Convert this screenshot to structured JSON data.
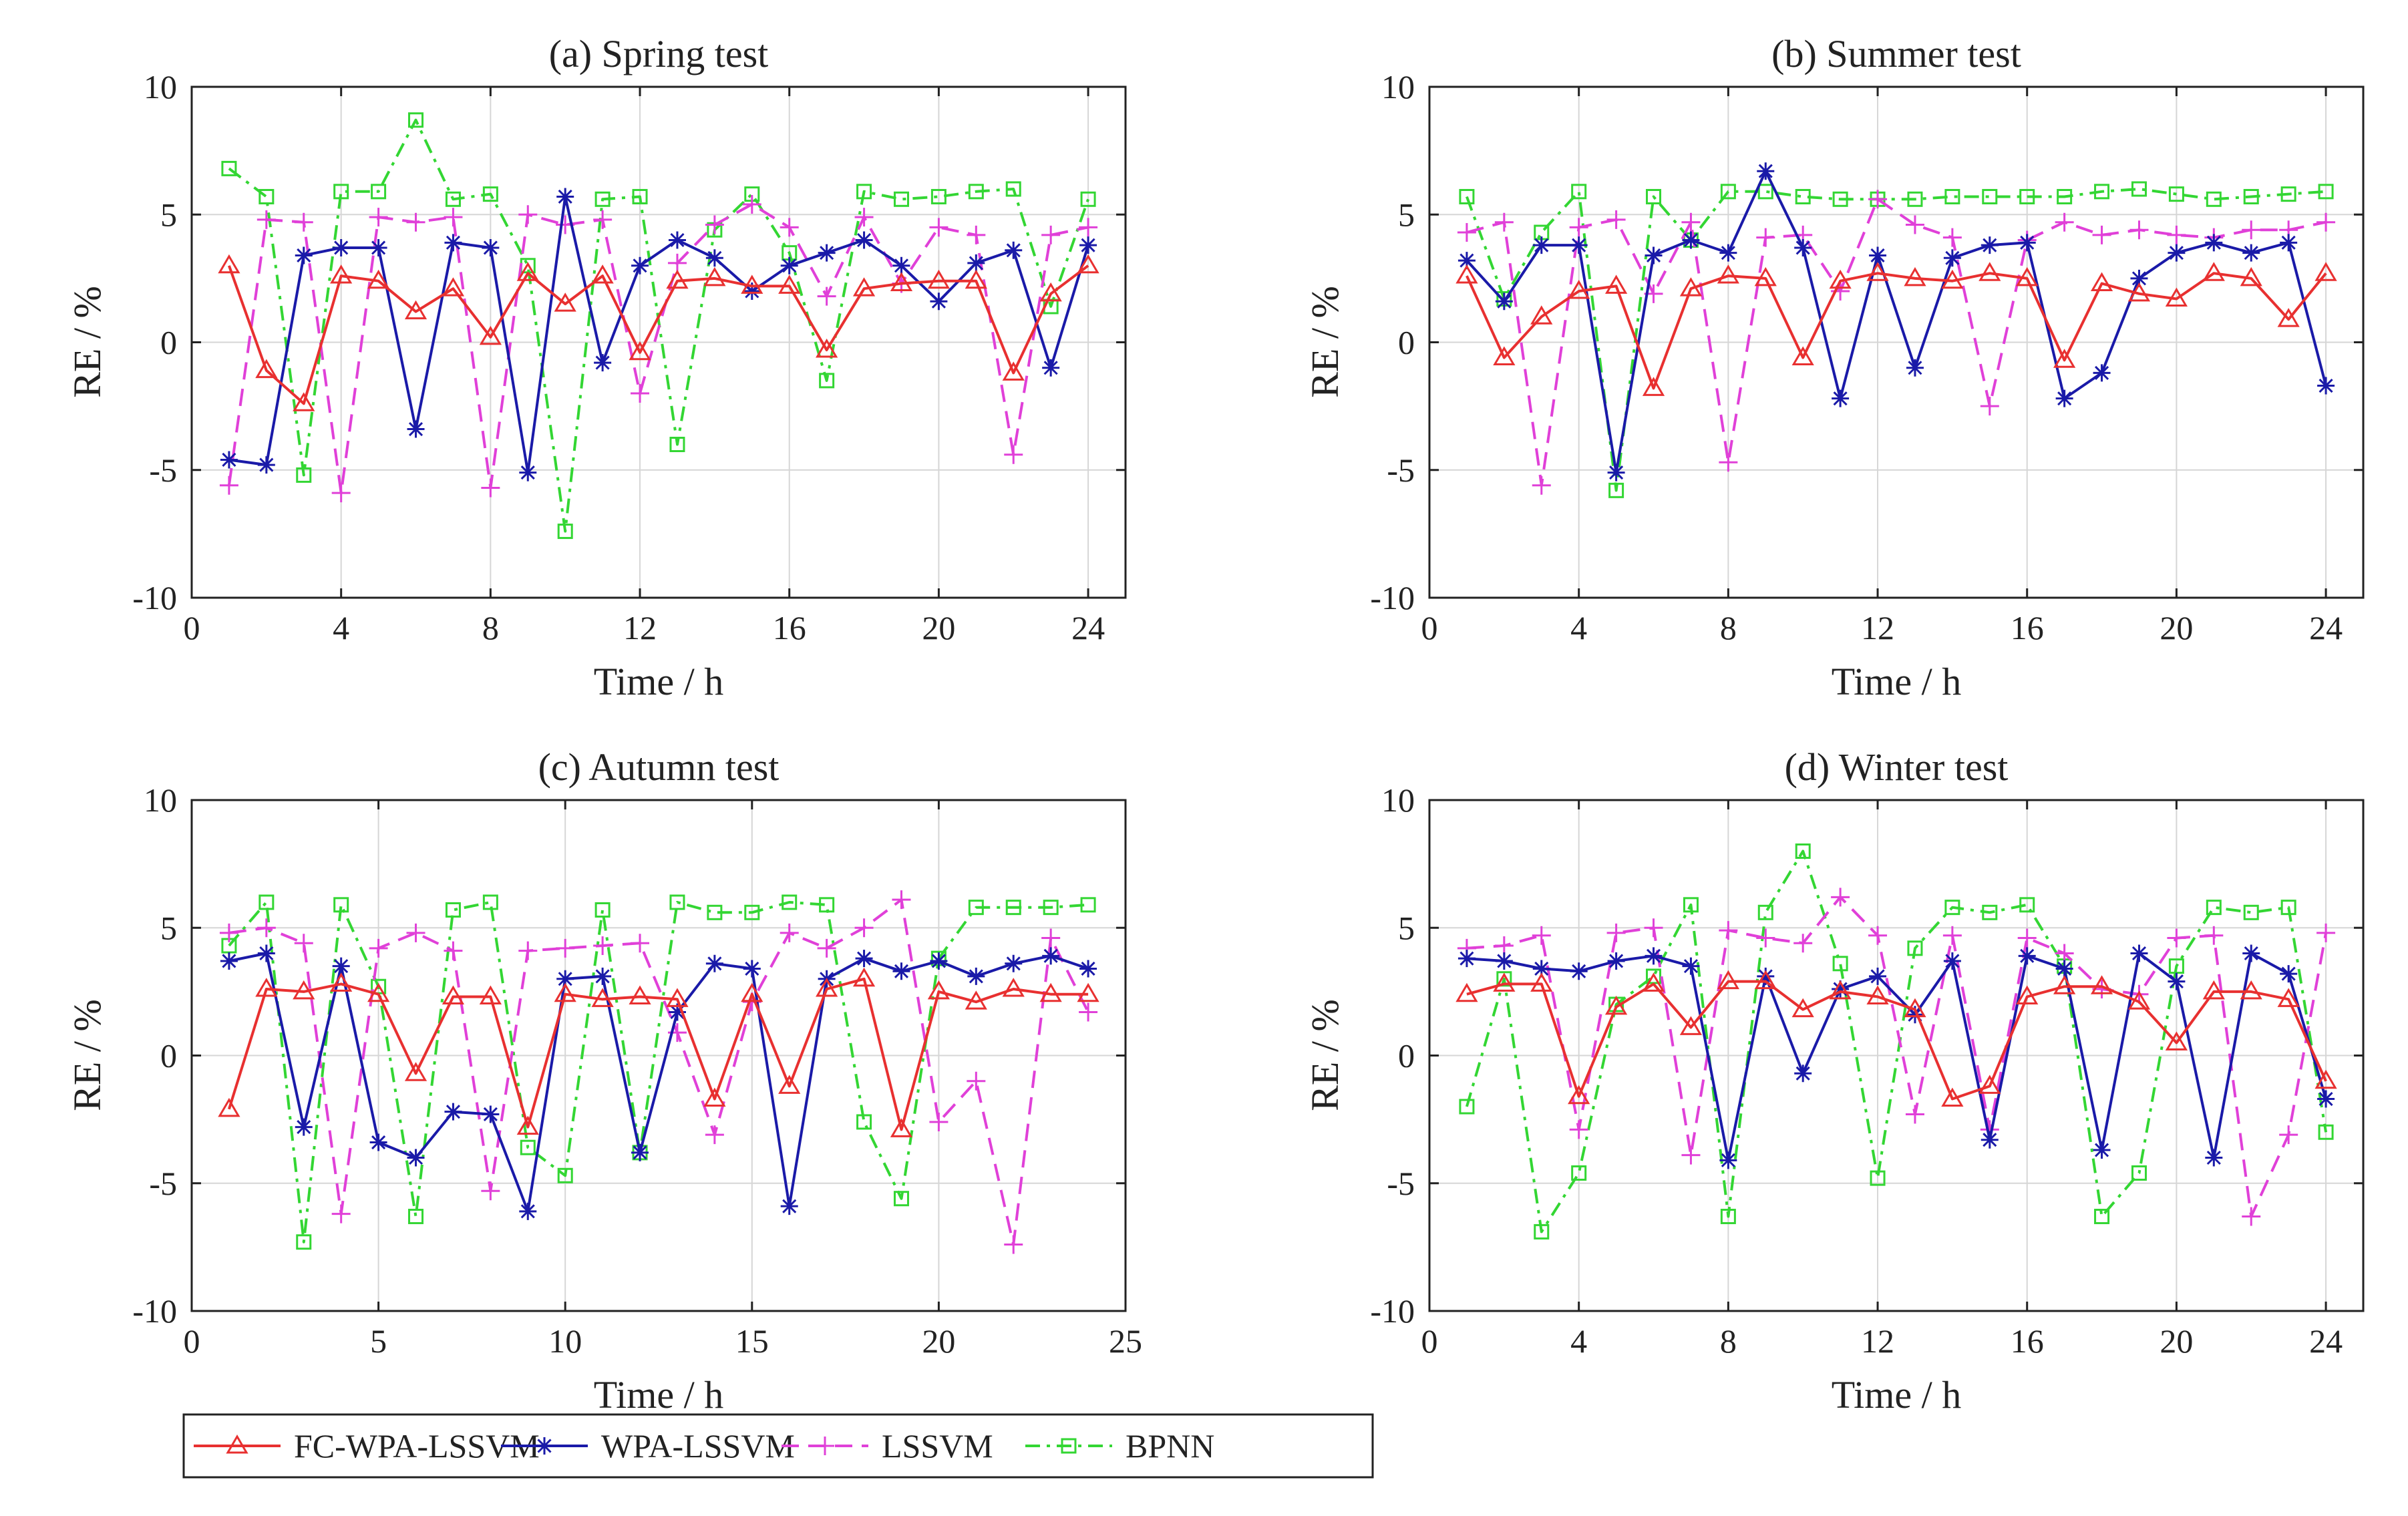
{
  "chart_data": [
    {
      "type": "line",
      "title": "(a) Spring test",
      "xlabel": "Time / h",
      "ylabel": "RE / %",
      "xlim": [
        0,
        25
      ],
      "ylim": [
        -10,
        10
      ],
      "xticks": [
        0,
        4,
        8,
        12,
        16,
        20,
        24
      ],
      "yticks": [
        -10,
        -5,
        0,
        5,
        10
      ],
      "grid": true,
      "x": [
        1,
        2,
        3,
        4,
        5,
        6,
        7,
        8,
        9,
        10,
        11,
        12,
        13,
        14,
        15,
        16,
        17,
        18,
        19,
        20,
        21,
        22,
        23,
        24
      ],
      "series": [
        {
          "name": "FC-WPA-LSSVM",
          "values": [
            3.0,
            -1.1,
            -2.4,
            2.6,
            2.4,
            1.2,
            2.1,
            0.2,
            2.7,
            1.5,
            2.6,
            -0.4,
            2.4,
            2.5,
            2.2,
            2.2,
            -0.3,
            2.1,
            2.3,
            2.4,
            2.4,
            -1.2,
            1.9,
            3.0
          ]
        },
        {
          "name": "WPA-LSSVM",
          "values": [
            -4.6,
            -4.8,
            3.4,
            3.7,
            3.7,
            -3.4,
            3.9,
            3.7,
            -5.1,
            5.7,
            -0.8,
            3.0,
            4.0,
            3.3,
            2.0,
            3.0,
            3.5,
            4.0,
            3.0,
            1.6,
            3.1,
            3.6,
            -1.0,
            3.8
          ]
        },
        {
          "name": "LSSVM",
          "values": [
            -5.6,
            4.8,
            4.7,
            -5.9,
            4.9,
            4.7,
            4.9,
            -5.7,
            5.0,
            4.6,
            4.8,
            -2.0,
            3.1,
            4.6,
            5.4,
            4.5,
            1.8,
            4.9,
            2.3,
            4.5,
            4.2,
            -4.4,
            4.2,
            4.5
          ]
        },
        {
          "name": "BPNN",
          "values": [
            6.8,
            5.7,
            -5.2,
            5.9,
            5.9,
            8.7,
            5.6,
            5.8,
            3.0,
            -7.4,
            5.6,
            5.7,
            -4.0,
            4.4,
            5.8,
            3.5,
            -1.5,
            5.9,
            5.6,
            5.7,
            5.9,
            6.0,
            1.4,
            5.6
          ]
        }
      ]
    },
    {
      "type": "line",
      "title": "(b) Summer test",
      "xlabel": "Time / h",
      "ylabel": "RE / %",
      "xlim": [
        0,
        25
      ],
      "ylim": [
        -10,
        10
      ],
      "xticks": [
        0,
        4,
        8,
        12,
        16,
        20,
        24
      ],
      "yticks": [
        -10,
        -5,
        0,
        5,
        10
      ],
      "grid": true,
      "x": [
        1,
        2,
        3,
        4,
        5,
        6,
        7,
        8,
        9,
        10,
        11,
        12,
        13,
        14,
        15,
        16,
        17,
        18,
        19,
        20,
        21,
        22,
        23,
        24
      ],
      "series": [
        {
          "name": "FC-WPA-LSSVM",
          "values": [
            2.6,
            -0.6,
            1.0,
            2.0,
            2.2,
            -1.8,
            2.1,
            2.6,
            2.5,
            -0.6,
            2.4,
            2.7,
            2.5,
            2.4,
            2.7,
            2.5,
            -0.7,
            2.3,
            1.9,
            1.7,
            2.7,
            2.5,
            0.9,
            2.7
          ]
        },
        {
          "name": "WPA-LSSVM",
          "values": [
            3.2,
            1.6,
            3.8,
            3.8,
            -5.1,
            3.4,
            4.0,
            3.5,
            6.7,
            3.7,
            -2.2,
            3.4,
            -1.0,
            3.3,
            3.8,
            3.9,
            -2.2,
            -1.2,
            2.5,
            3.5,
            3.9,
            3.5,
            3.9,
            -1.7
          ]
        },
        {
          "name": "LSSVM",
          "values": [
            4.3,
            4.7,
            -5.6,
            4.5,
            4.8,
            1.9,
            4.7,
            -4.7,
            4.1,
            4.2,
            2.0,
            5.6,
            4.6,
            4.1,
            -2.5,
            4.0,
            4.7,
            4.2,
            4.4,
            4.2,
            4.1,
            4.4,
            4.4,
            4.7
          ]
        },
        {
          "name": "BPNN",
          "values": [
            5.7,
            1.7,
            4.3,
            5.9,
            -5.8,
            5.7,
            4.0,
            5.9,
            5.9,
            5.7,
            5.6,
            5.6,
            5.6,
            5.7,
            5.7,
            5.7,
            5.7,
            5.9,
            6.0,
            5.8,
            5.6,
            5.7,
            5.8,
            5.9
          ]
        }
      ]
    },
    {
      "type": "line",
      "title": "(c) Autumn test",
      "xlabel": "Time / h",
      "ylabel": "RE / %",
      "xlim": [
        0,
        25
      ],
      "ylim": [
        -10,
        10
      ],
      "xticks": [
        0,
        5,
        10,
        15,
        20,
        25
      ],
      "yticks": [
        -10,
        -5,
        0,
        5,
        10
      ],
      "grid": true,
      "x": [
        1,
        2,
        3,
        4,
        5,
        6,
        7,
        8,
        9,
        10,
        11,
        12,
        13,
        14,
        15,
        16,
        17,
        18,
        19,
        20,
        21,
        22,
        23,
        24
      ],
      "series": [
        {
          "name": "FC-WPA-LSSVM",
          "values": [
            -2.1,
            2.6,
            2.5,
            2.8,
            2.4,
            -0.7,
            2.3,
            2.3,
            -2.8,
            2.4,
            2.2,
            2.3,
            2.2,
            -1.7,
            2.4,
            -1.2,
            2.6,
            3.0,
            -2.9,
            2.5,
            2.1,
            2.6,
            2.4,
            2.4
          ]
        },
        {
          "name": "WPA-LSSVM",
          "values": [
            3.7,
            4.0,
            -2.8,
            3.5,
            -3.4,
            -4.0,
            -2.2,
            -2.3,
            -6.1,
            3.0,
            3.1,
            -3.8,
            1.7,
            3.6,
            3.4,
            -5.9,
            3.0,
            3.8,
            3.3,
            3.7,
            3.1,
            3.6,
            3.9,
            3.4
          ]
        },
        {
          "name": "LSSVM",
          "values": [
            4.8,
            5.0,
            4.4,
            -6.2,
            4.2,
            4.8,
            4.1,
            -5.3,
            4.1,
            4.2,
            4.3,
            4.4,
            0.9,
            -3.1,
            2.1,
            4.8,
            4.2,
            5.0,
            6.1,
            -2.6,
            -1.0,
            -7.4,
            4.6,
            1.7
          ]
        },
        {
          "name": "BPNN",
          "values": [
            4.3,
            6.0,
            -7.3,
            5.9,
            2.7,
            -6.3,
            5.7,
            6.0,
            -3.6,
            -4.7,
            5.7,
            -3.8,
            6.0,
            5.6,
            5.6,
            6.0,
            5.9,
            -2.6,
            -5.6,
            3.8,
            5.8,
            5.8,
            5.8,
            5.9
          ]
        }
      ]
    },
    {
      "type": "line",
      "title": "(d) Winter test",
      "xlabel": "Time / h",
      "ylabel": "RE / %",
      "xlim": [
        0,
        25
      ],
      "ylim": [
        -10,
        10
      ],
      "xticks": [
        0,
        4,
        8,
        12,
        16,
        20,
        24
      ],
      "yticks": [
        -10,
        -5,
        0,
        5,
        10
      ],
      "grid": true,
      "x": [
        1,
        2,
        3,
        4,
        5,
        6,
        7,
        8,
        9,
        10,
        11,
        12,
        13,
        14,
        15,
        16,
        17,
        18,
        19,
        20,
        21,
        22,
        23,
        24
      ],
      "series": [
        {
          "name": "FC-WPA-LSSVM",
          "values": [
            2.4,
            2.8,
            2.8,
            -1.6,
            1.9,
            2.8,
            1.1,
            2.9,
            2.9,
            1.8,
            2.5,
            2.3,
            1.8,
            -1.7,
            -1.2,
            2.3,
            2.7,
            2.7,
            2.1,
            0.5,
            2.5,
            2.5,
            2.2,
            -1.0
          ]
        },
        {
          "name": "WPA-LSSVM",
          "values": [
            3.8,
            3.7,
            3.4,
            3.3,
            3.7,
            3.9,
            3.5,
            -4.1,
            3.1,
            -0.7,
            2.6,
            3.1,
            1.6,
            3.7,
            -3.3,
            3.9,
            3.4,
            -3.7,
            4.0,
            2.9,
            -4.0,
            4.0,
            3.2,
            -1.7
          ]
        },
        {
          "name": "LSSVM",
          "values": [
            4.2,
            4.3,
            4.7,
            -2.9,
            4.8,
            5.0,
            -3.9,
            4.9,
            4.6,
            4.4,
            6.2,
            4.7,
            -2.3,
            4.7,
            -2.9,
            4.6,
            4.0,
            2.6,
            2.4,
            4.6,
            4.7,
            -6.3,
            -3.1,
            4.8
          ]
        },
        {
          "name": "BPNN",
          "values": [
            -2.0,
            3.0,
            -6.9,
            -4.6,
            2.0,
            3.1,
            5.9,
            -6.3,
            5.6,
            8.0,
            3.6,
            -4.8,
            4.2,
            5.8,
            5.6,
            5.9,
            3.5,
            -6.3,
            -4.6,
            3.5,
            5.8,
            5.6,
            5.8,
            -3.0
          ]
        }
      ]
    }
  ],
  "legend": {
    "placement": "bottom-left",
    "entries": [
      "FC-WPA-LSSVM",
      "WPA-LSSVM",
      "LSSVM",
      "BPNN"
    ]
  },
  "styles": {
    "FC-WPA-LSSVM": {
      "color": "#e83030",
      "marker": "triangle",
      "dash": "solid"
    },
    "WPA-LSSVM": {
      "color": "#1a1aa8",
      "marker": "asterisk",
      "dash": "solid"
    },
    "LSSVM": {
      "color": "#e040d8",
      "marker": "plus",
      "dash": "dashed"
    },
    "BPNN": {
      "color": "#33d633",
      "marker": "square",
      "dash": "dashdot"
    }
  }
}
